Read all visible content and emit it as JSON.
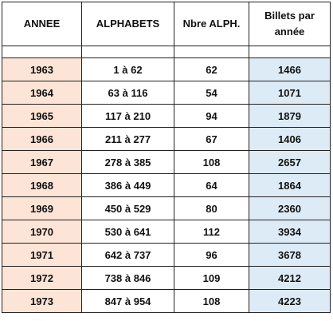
{
  "table": {
    "header": [
      "ANNEE",
      "ALPHABETS",
      "Nbre ALPH.",
      "Billets par année"
    ],
    "rows": [
      [
        1963,
        "1 à 62",
        62,
        1466
      ],
      [
        1964,
        "63 à 116",
        54,
        1071
      ],
      [
        1965,
        "117 à 210",
        94,
        1879
      ],
      [
        1966,
        "211 à 277",
        67,
        1406
      ],
      [
        1967,
        "278 à 385",
        108,
        2657
      ],
      [
        1968,
        "386 à 449",
        64,
        1864
      ],
      [
        1969,
        "450 à 529",
        80,
        2360
      ],
      [
        1970,
        "530 à 641",
        112,
        3934
      ],
      [
        1971,
        "642 à 737",
        96,
        3678
      ],
      [
        1972,
        "738 à 846",
        109,
        4212
      ],
      [
        1973,
        "847 à 954",
        108,
        4223
      ]
    ]
  }
}
